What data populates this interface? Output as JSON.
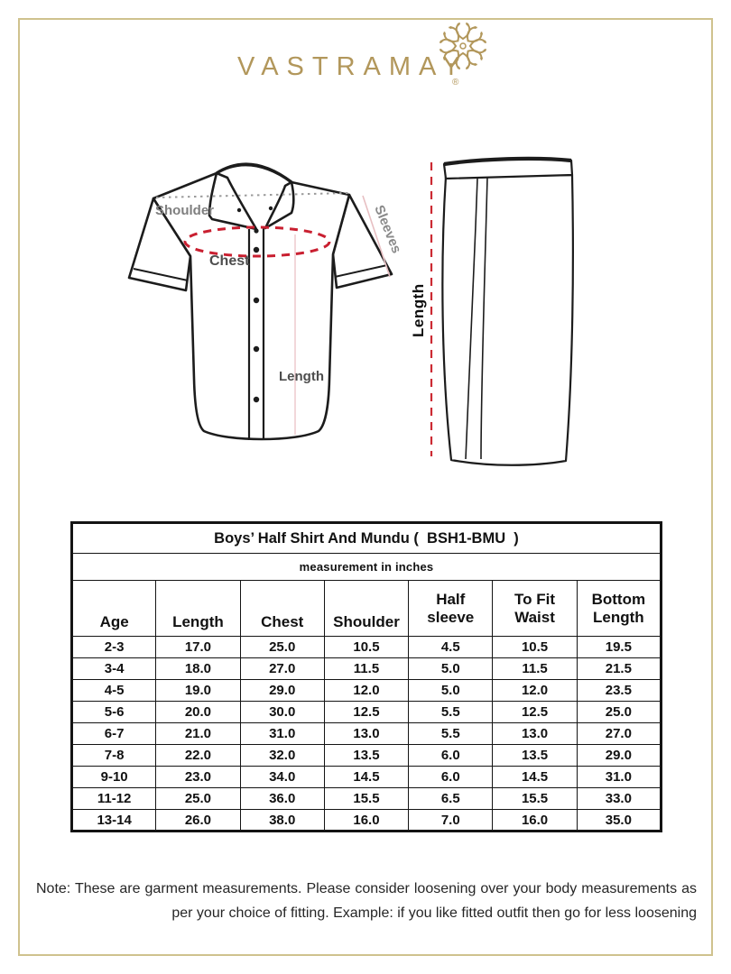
{
  "brand": {
    "name": "VASTRAMAY",
    "registered": "®"
  },
  "shirt_diagram": {
    "shoulder_label": "Shoulder",
    "chest_label": "Chest",
    "sleeves_label": "Sleeves",
    "length_label": "Length"
  },
  "mundu_diagram": {
    "length_label": "Length"
  },
  "size_chart": {
    "title": "Boys’ Half Shirt And Mundu (  BSH1-BMU  )",
    "subtitle": "measurement in inches",
    "columns": [
      "Age",
      "Length",
      "Chest",
      "Shoulder",
      "Half\nsleeve",
      "To Fit\nWaist",
      "Bottom\nLength"
    ],
    "rows": [
      [
        "2-3",
        "17.0",
        "25.0",
        "10.5",
        "4.5",
        "10.5",
        "19.5"
      ],
      [
        "3-4",
        "18.0",
        "27.0",
        "11.5",
        "5.0",
        "11.5",
        "21.5"
      ],
      [
        "4-5",
        "19.0",
        "29.0",
        "12.0",
        "5.0",
        "12.0",
        "23.5"
      ],
      [
        "5-6",
        "20.0",
        "30.0",
        "12.5",
        "5.5",
        "12.5",
        "25.0"
      ],
      [
        "6-7",
        "21.0",
        "31.0",
        "13.0",
        "5.5",
        "13.0",
        "27.0"
      ],
      [
        "7-8",
        "22.0",
        "32.0",
        "13.5",
        "6.0",
        "13.5",
        "29.0"
      ],
      [
        "9-10",
        "23.0",
        "34.0",
        "14.5",
        "6.0",
        "14.5",
        "31.0"
      ],
      [
        "11-12",
        "25.0",
        "36.0",
        "15.5",
        "6.5",
        "15.5",
        "33.0"
      ],
      [
        "13-14",
        "26.0",
        "38.0",
        "16.0",
        "7.0",
        "16.0",
        "35.0"
      ]
    ]
  },
  "note": "Note: These are garment measurements. Please consider loosening over your body measurements as per your choice of fitting. Example: if you like fitted outfit then go for less loosening",
  "colors": {
    "gold": "#b2975b",
    "frame_gold": "#cfc28e",
    "measure_red": "#c91f30",
    "label_gray": "#7f7f7f",
    "guide_pink": "#e7bfc2",
    "ink": "#141414"
  }
}
